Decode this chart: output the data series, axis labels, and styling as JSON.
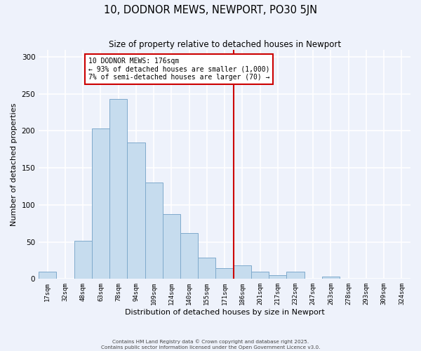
{
  "title": "10, DODNOR MEWS, NEWPORT, PO30 5JN",
  "subtitle": "Size of property relative to detached houses in Newport",
  "xlabel": "Distribution of detached houses by size in Newport",
  "ylabel": "Number of detached properties",
  "bar_labels": [
    "17sqm",
    "32sqm",
    "48sqm",
    "63sqm",
    "78sqm",
    "94sqm",
    "109sqm",
    "124sqm",
    "140sqm",
    "155sqm",
    "171sqm",
    "186sqm",
    "201sqm",
    "217sqm",
    "232sqm",
    "247sqm",
    "263sqm",
    "278sqm",
    "293sqm",
    "309sqm",
    "324sqm"
  ],
  "bar_values": [
    10,
    0,
    52,
    203,
    243,
    184,
    130,
    88,
    62,
    29,
    15,
    18,
    10,
    5,
    10,
    0,
    3,
    0,
    0,
    0,
    0
  ],
  "bar_color": "#c6dcee",
  "bar_edge_color": "#7faacc",
  "bg_color": "#eef2fb",
  "grid_color": "#ffffff",
  "vline_color": "#cc0000",
  "vline_index": 10,
  "annotation_text": "10 DODNOR MEWS: 176sqm\n← 93% of detached houses are smaller (1,000)\n7% of semi-detached houses are larger (70) →",
  "annotation_box_color": "#cc0000",
  "ylim": [
    0,
    310
  ],
  "yticks": [
    0,
    50,
    100,
    150,
    200,
    250,
    300
  ],
  "footnote1": "Contains HM Land Registry data © Crown copyright and database right 2025.",
  "footnote2": "Contains public sector information licensed under the Open Government Licence v3.0."
}
